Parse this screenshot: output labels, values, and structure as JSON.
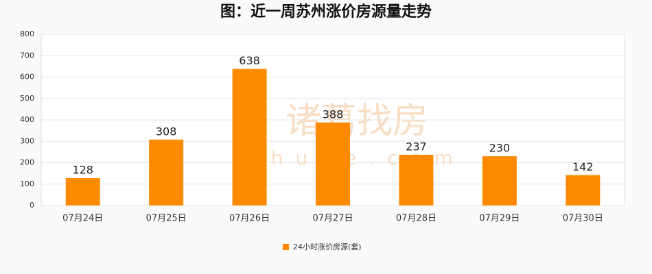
{
  "chart_data": {
    "type": "bar",
    "title": "图：近一周苏州涨价房源量走势",
    "categories": [
      "07月24日",
      "07月25日",
      "07月26日",
      "07月27日",
      "07月28日",
      "07月29日",
      "07月30日"
    ],
    "series": [
      {
        "name": "24小时涨价房源(套)",
        "color": "#ff8a00",
        "values": [
          128,
          308,
          638,
          388,
          237,
          230,
          142
        ]
      }
    ],
    "ylim": [
      0,
      800
    ],
    "yticks": [
      0,
      100,
      200,
      300,
      400,
      500,
      600,
      700,
      800
    ],
    "grid": true,
    "legend": "bottom",
    "watermark": [
      "诸葛找房",
      "zhuge.com"
    ]
  }
}
